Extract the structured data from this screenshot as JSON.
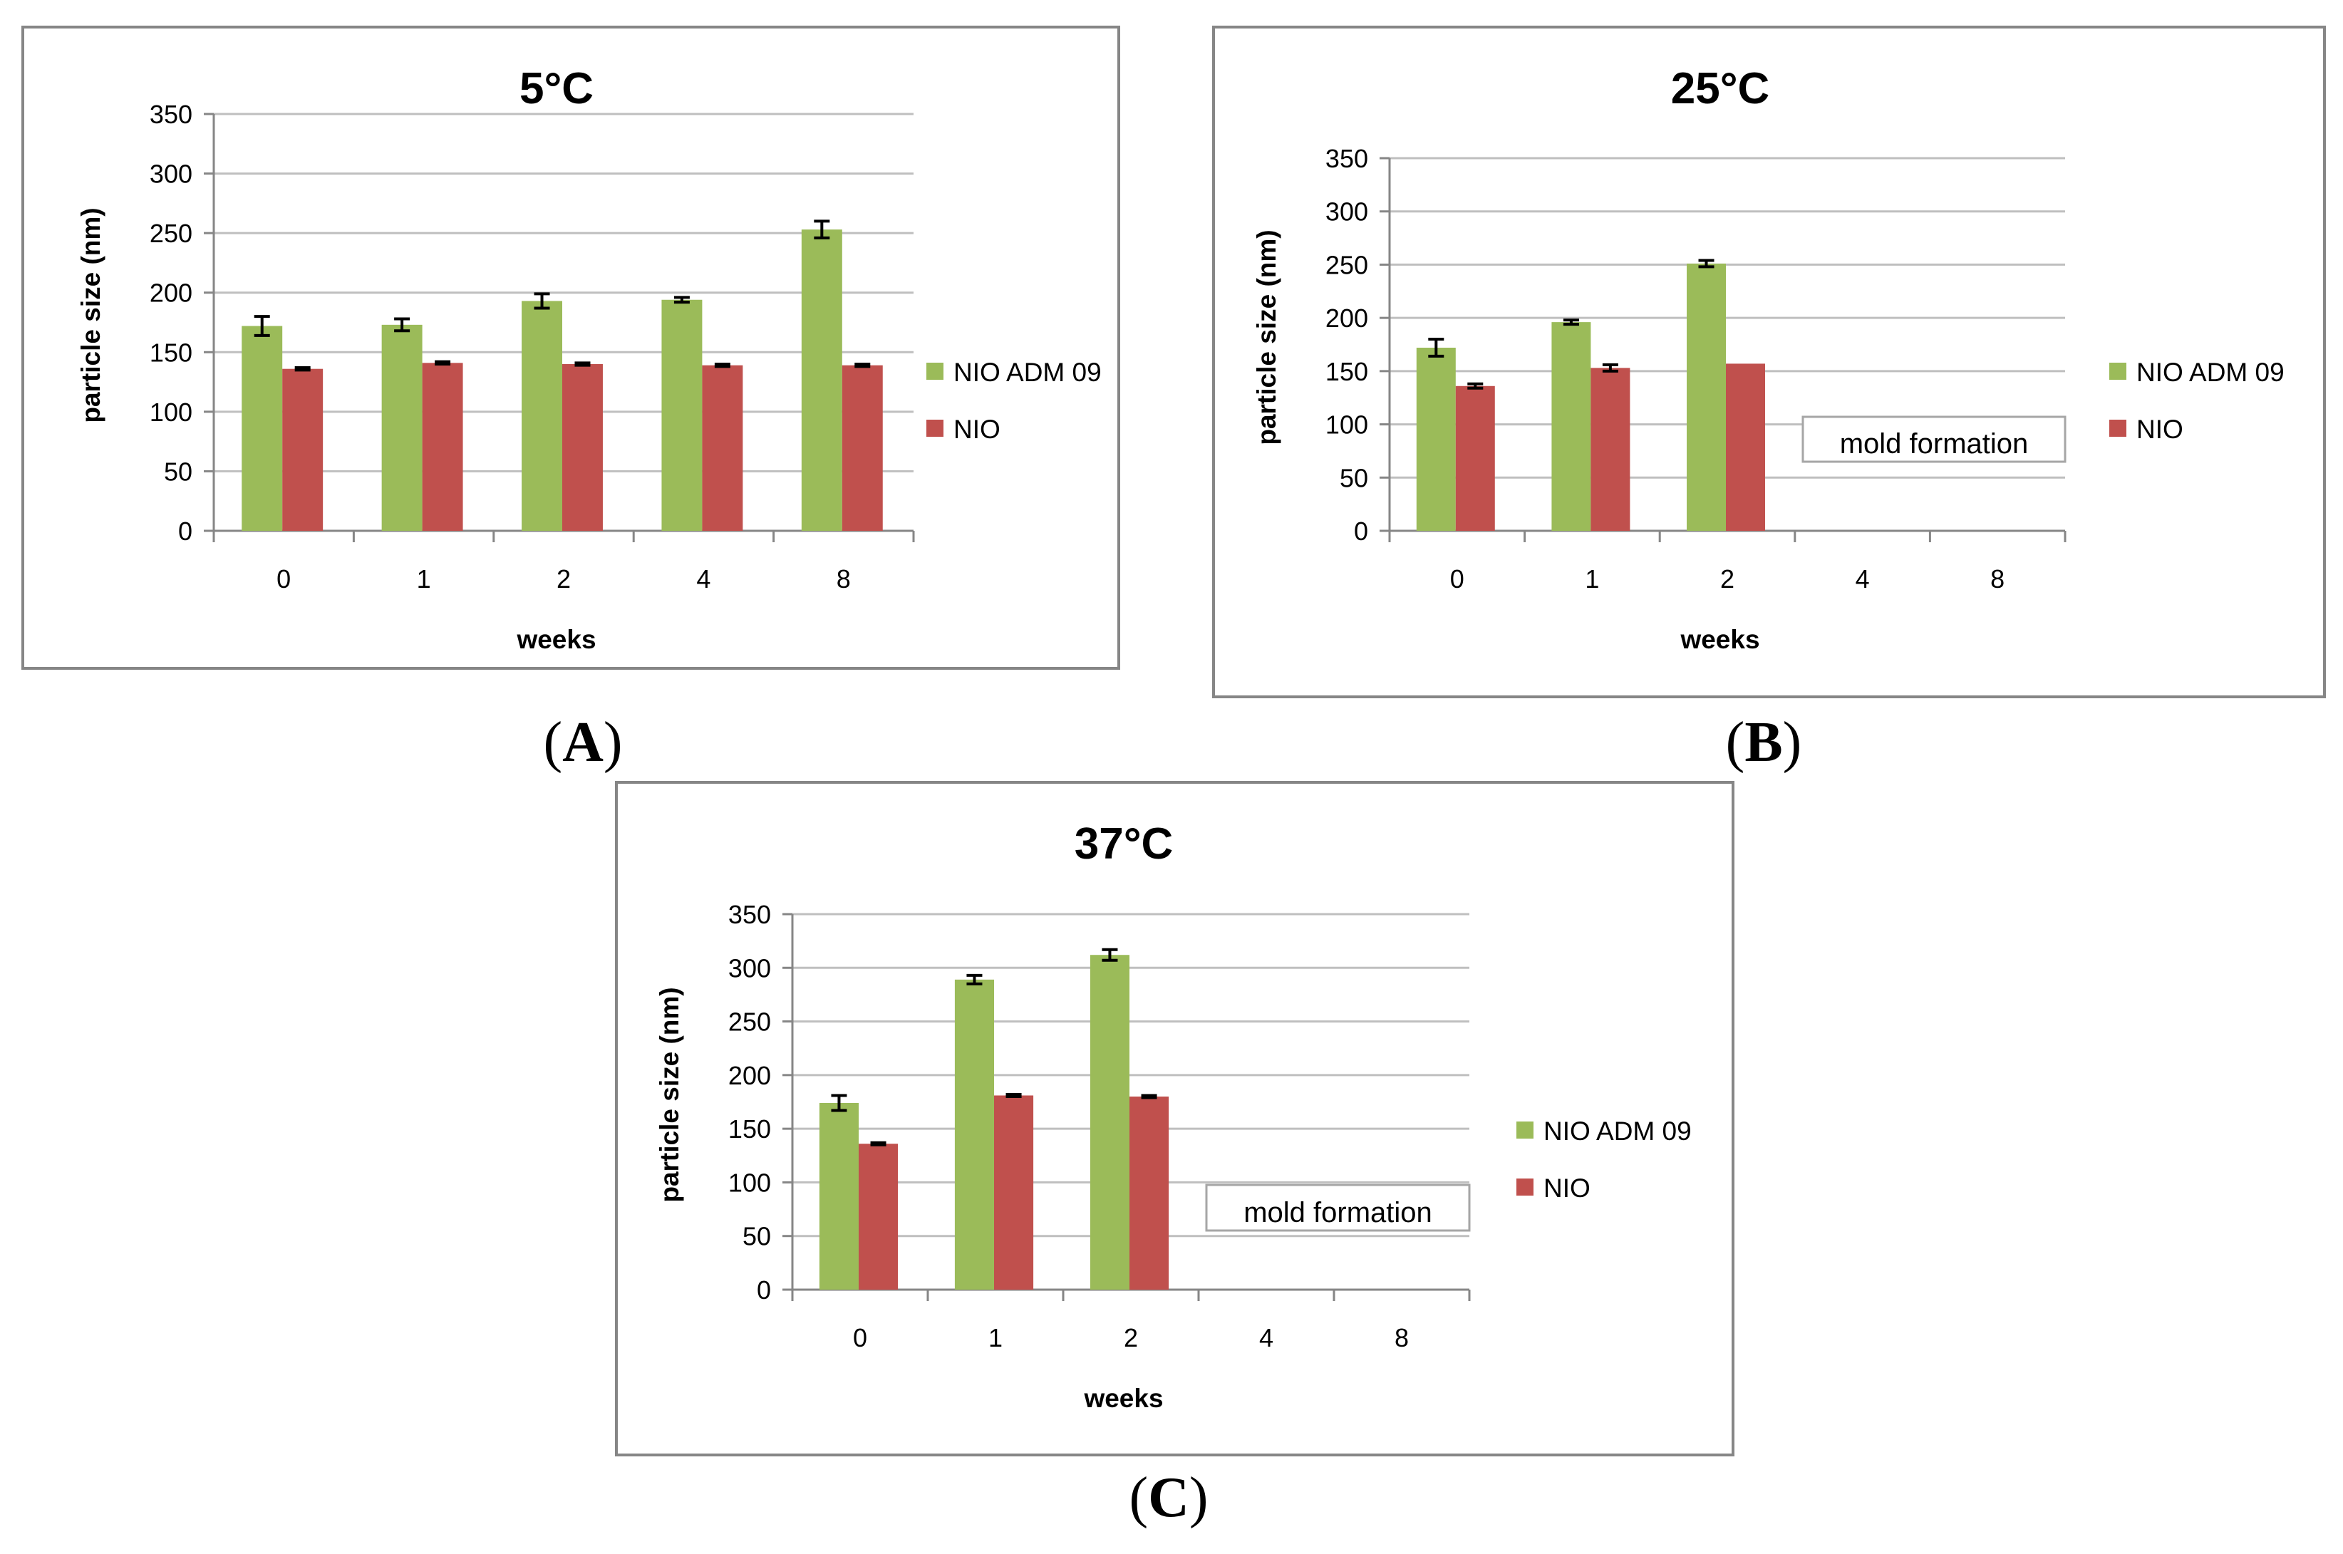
{
  "colors": {
    "series_green": "#9BBB59",
    "series_red": "#C0504D",
    "grid": "#BFBFBF",
    "axis": "#868686",
    "frame": "#868686"
  },
  "panels": [
    {
      "label_open": "(",
      "label_letter": "A",
      "label_close": ")"
    },
    {
      "label_open": "(",
      "label_letter": "B",
      "label_close": ")"
    },
    {
      "label_open": "(",
      "label_letter": "C",
      "label_close": ")"
    }
  ],
  "chart_data": [
    {
      "type": "bar",
      "title": "5°C",
      "xlabel": "weeks",
      "ylabel": "particle size (nm)",
      "ylim": [
        0,
        350
      ],
      "yticks": [
        "0",
        "50",
        "100",
        "150",
        "200",
        "250",
        "300",
        "350"
      ],
      "grid": true,
      "legend": "right",
      "categories": [
        "0",
        "1",
        "2",
        "4",
        "8"
      ],
      "series": [
        {
          "name": "NIO ADM 09",
          "values": [
            172,
            173,
            193,
            194,
            253
          ],
          "errors": [
            8,
            5,
            6,
            2,
            7
          ]
        },
        {
          "name": "NIO",
          "values": [
            136,
            141,
            140,
            139,
            139
          ],
          "errors": [
            1,
            1,
            1,
            1,
            1
          ]
        }
      ],
      "annotation": ""
    },
    {
      "type": "bar",
      "title": "25°C",
      "xlabel": "weeks",
      "ylabel": "particle size (nm)",
      "ylim": [
        0,
        350
      ],
      "yticks": [
        "0",
        "50",
        "100",
        "150",
        "200",
        "250",
        "300",
        "350"
      ],
      "grid": true,
      "legend": "right",
      "categories": [
        "0",
        "1",
        "2",
        "4",
        "8"
      ],
      "series": [
        {
          "name": "NIO ADM 09",
          "values": [
            172,
            196,
            251,
            null,
            null
          ],
          "errors": [
            8,
            2,
            3,
            0,
            0
          ]
        },
        {
          "name": "NIO",
          "values": [
            136,
            153,
            157,
            null,
            null
          ],
          "errors": [
            2,
            3,
            0,
            0,
            0
          ]
        }
      ],
      "annotation": "mold formation"
    },
    {
      "type": "bar",
      "title": "37°C",
      "xlabel": "weeks",
      "ylabel": "particle size (nm)",
      "ylim": [
        0,
        350
      ],
      "yticks": [
        "0",
        "50",
        "100",
        "150",
        "200",
        "250",
        "300",
        "350"
      ],
      "grid": true,
      "legend": "right",
      "categories": [
        "0",
        "1",
        "2",
        "4",
        "8"
      ],
      "series": [
        {
          "name": "NIO ADM 09",
          "values": [
            174,
            289,
            312,
            null,
            null
          ],
          "errors": [
            7,
            4,
            5,
            0,
            0
          ]
        },
        {
          "name": "NIO",
          "values": [
            136,
            181,
            180,
            null,
            null
          ],
          "errors": [
            1,
            1,
            1,
            0,
            0
          ]
        }
      ],
      "annotation": "mold formation"
    }
  ]
}
